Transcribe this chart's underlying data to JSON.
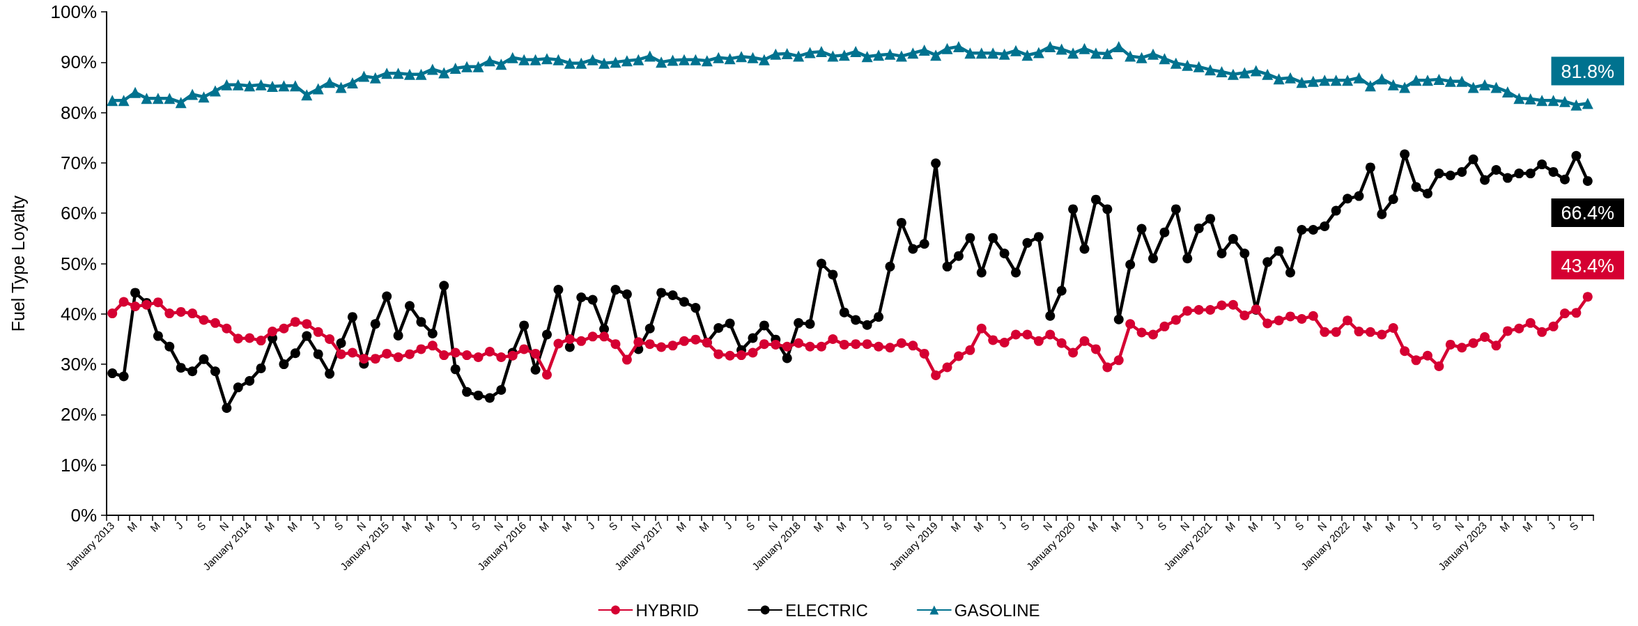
{
  "chart_data": {
    "type": "line",
    "ylabel": "Fuel Type Loyalty",
    "categories": [
      "January 2013",
      null,
      "M",
      null,
      "M",
      null,
      "J",
      null,
      "S",
      null,
      "N",
      null,
      "January 2014",
      null,
      "M",
      null,
      "M",
      null,
      "J",
      null,
      "S",
      null,
      "N",
      null,
      "January 2015",
      null,
      "M",
      null,
      "M",
      null,
      "J",
      null,
      "S",
      null,
      "N",
      null,
      "January 2016",
      null,
      "M",
      null,
      "M",
      null,
      "J",
      null,
      "S",
      null,
      "N",
      null,
      "January 2017",
      null,
      "M",
      null,
      "M",
      null,
      "J",
      null,
      "S",
      null,
      "N",
      null,
      "January 2018",
      null,
      "M",
      null,
      "M",
      null,
      "J",
      null,
      "S",
      null,
      "N",
      null,
      "January 2019",
      null,
      "M",
      null,
      "M",
      null,
      "J",
      null,
      "S",
      null,
      "N",
      null,
      "January 2020",
      null,
      "M",
      null,
      "M",
      null,
      "J",
      null,
      "S",
      null,
      "N",
      null,
      "January 2021",
      null,
      "M",
      null,
      "M",
      null,
      "J",
      null,
      "S",
      null,
      "N",
      null,
      "January 2022",
      null,
      "M",
      null,
      "M",
      null,
      "J",
      null,
      "S",
      null,
      "N",
      null,
      "January 2023",
      null,
      "M",
      null,
      "M",
      null,
      "J",
      null,
      "S",
      null
    ],
    "series": [
      {
        "name": "HYBRID",
        "color": "#d50032",
        "marker": "circle",
        "values": [
          40.1,
          42.4,
          41.5,
          41.8,
          42.3,
          40.1,
          40.4,
          40.1,
          38.8,
          38.2,
          37.1,
          35.1,
          35.2,
          34.7,
          36.5,
          37.1,
          38.4,
          38.0,
          36.4,
          35.0,
          32.0,
          32.3,
          31.1,
          31.1,
          32.1,
          31.4,
          32.0,
          33.0,
          33.7,
          31.8,
          32.3,
          31.8,
          31.4,
          32.5,
          31.4,
          31.7,
          33.0,
          32.1,
          27.9,
          34.1,
          35.0,
          34.6,
          35.5,
          35.5,
          34.0,
          30.9,
          34.4,
          34.0,
          33.4,
          33.7,
          34.6,
          34.9,
          34.3,
          32.0,
          31.7,
          31.8,
          32.3,
          34.0,
          33.9,
          33.5,
          34.2,
          33.5,
          33.5,
          35.0,
          33.9,
          34.0,
          34.0,
          33.5,
          33.3,
          34.2,
          33.7,
          32.1,
          27.8,
          29.4,
          31.6,
          32.8,
          37.1,
          34.8,
          34.3,
          35.9,
          35.9,
          34.6,
          35.9,
          34.2,
          32.3,
          34.6,
          33.0,
          29.4,
          30.8,
          38.0,
          36.3,
          35.9,
          37.5,
          38.8,
          40.6,
          40.8,
          40.8,
          41.7,
          41.8,
          39.7,
          40.9,
          38.1,
          38.7,
          39.5,
          39.0,
          39.6,
          36.4,
          36.4,
          38.7,
          36.5,
          36.4,
          35.9,
          37.2,
          32.6,
          30.8,
          31.7,
          29.6,
          33.9,
          33.3,
          34.2,
          35.4,
          33.7,
          36.6,
          37.1,
          38.2,
          36.4,
          37.5,
          40.1,
          40.2,
          43.4
        ],
        "value_labels": [
          null,
          null,
          null,
          null,
          null,
          null,
          null,
          null,
          null,
          null,
          null,
          null,
          null,
          null,
          null,
          null,
          null,
          null,
          null,
          null,
          null,
          null,
          null,
          null,
          null,
          null,
          null,
          null,
          null,
          null,
          null,
          null,
          null,
          null,
          null,
          null,
          null,
          null,
          null,
          null,
          null,
          null,
          null,
          null,
          null,
          null,
          null,
          null,
          null,
          null,
          null,
          null,
          null,
          null,
          null,
          null,
          null,
          null,
          null,
          null,
          null,
          null,
          null,
          null,
          null,
          null,
          null,
          null,
          null,
          null,
          null,
          null,
          null,
          null,
          null,
          null,
          null,
          null,
          null,
          null,
          null,
          null,
          null,
          null,
          null,
          null,
          null,
          null,
          null,
          null,
          null,
          null,
          null,
          null,
          null,
          null,
          null,
          null,
          null,
          null,
          null,
          null,
          null,
          null,
          null,
          null,
          null,
          null,
          null,
          null,
          null,
          null,
          null,
          null,
          null,
          null,
          null,
          null,
          null,
          null,
          null,
          null,
          null,
          null,
          null,
          null,
          null,
          null,
          null,
          "43.4%"
        ]
      },
      {
        "name": "ELECTRIC",
        "color": "#000000",
        "marker": "circle",
        "values": [
          28.2,
          27.6,
          44.2,
          42.2,
          35.6,
          33.5,
          29.3,
          28.6,
          31.0,
          28.6,
          21.3,
          25.4,
          26.7,
          29.2,
          35.2,
          30.0,
          32.2,
          35.6,
          32.0,
          28.1,
          34.2,
          39.4,
          30.1,
          38.0,
          43.5,
          35.7,
          41.6,
          38.4,
          36.1,
          45.6,
          29.0,
          24.5,
          23.8,
          23.3,
          24.9,
          32.3,
          37.7,
          28.9,
          35.9,
          44.8,
          33.4,
          43.3,
          42.8,
          37.0,
          44.8,
          43.9,
          33.0,
          37.1,
          44.2,
          43.7,
          42.4,
          41.2,
          34.3,
          37.2,
          38.1,
          32.8,
          35.2,
          37.7,
          34.9,
          31.2,
          38.2,
          38.0,
          50.0,
          47.8,
          40.3,
          38.8,
          37.8,
          39.4,
          49.4,
          58.1,
          52.9,
          53.9,
          69.9,
          49.4,
          51.5,
          55.1,
          48.2,
          55.1,
          52.0,
          48.2,
          54.1,
          55.3,
          39.6,
          44.6,
          60.8,
          52.9,
          62.7,
          60.8,
          38.9,
          49.8,
          56.9,
          51.0,
          56.2,
          60.8,
          51.0,
          57.0,
          58.9,
          52.0,
          54.9,
          52.0,
          40.8,
          50.3,
          52.5,
          48.2,
          56.7,
          56.7,
          57.4,
          60.5,
          62.9,
          63.4,
          69.1,
          59.8,
          62.8,
          71.7,
          65.2,
          63.9,
          67.9,
          67.5,
          68.2,
          70.7,
          66.6,
          68.6,
          67.0,
          67.9,
          67.9,
          69.7,
          68.2,
          66.7,
          71.4,
          66.4
        ],
        "value_labels": [
          null,
          null,
          null,
          null,
          null,
          null,
          null,
          null,
          null,
          null,
          null,
          null,
          null,
          null,
          null,
          null,
          null,
          null,
          null,
          null,
          null,
          null,
          null,
          null,
          null,
          null,
          null,
          null,
          null,
          null,
          null,
          null,
          null,
          null,
          null,
          null,
          null,
          null,
          null,
          null,
          null,
          null,
          null,
          null,
          null,
          null,
          null,
          null,
          null,
          null,
          null,
          null,
          null,
          null,
          null,
          null,
          null,
          null,
          null,
          null,
          null,
          null,
          null,
          null,
          null,
          null,
          null,
          null,
          null,
          null,
          null,
          null,
          null,
          null,
          null,
          null,
          null,
          null,
          null,
          null,
          null,
          null,
          null,
          null,
          null,
          null,
          null,
          null,
          null,
          null,
          null,
          null,
          null,
          null,
          null,
          null,
          null,
          null,
          null,
          null,
          null,
          null,
          null,
          null,
          null,
          null,
          null,
          null,
          null,
          null,
          null,
          null,
          null,
          null,
          null,
          null,
          null,
          null,
          null,
          null,
          null,
          null,
          null,
          null,
          null,
          null,
          null,
          null,
          null,
          "66.4%"
        ]
      },
      {
        "name": "GASOLINE",
        "color": "#00728f",
        "marker": "triangle",
        "values": [
          82.4,
          82.4,
          84.0,
          82.8,
          82.8,
          82.8,
          82.0,
          83.6,
          83.1,
          84.3,
          85.5,
          85.5,
          85.3,
          85.5,
          85.2,
          85.3,
          85.3,
          83.5,
          84.7,
          86.0,
          85.0,
          85.9,
          87.2,
          86.9,
          87.8,
          87.8,
          87.6,
          87.6,
          88.6,
          87.9,
          88.8,
          89.1,
          89.1,
          90.3,
          89.6,
          90.9,
          90.5,
          90.5,
          90.7,
          90.5,
          89.8,
          89.8,
          90.5,
          89.8,
          90.0,
          90.3,
          90.5,
          91.2,
          90.0,
          90.4,
          90.5,
          90.5,
          90.3,
          90.9,
          90.7,
          91.1,
          90.9,
          90.5,
          91.6,
          91.7,
          91.2,
          91.9,
          92.1,
          91.2,
          91.4,
          92.1,
          91.1,
          91.4,
          91.6,
          91.2,
          91.8,
          92.4,
          91.4,
          92.7,
          93.1,
          91.8,
          91.8,
          91.8,
          91.6,
          92.3,
          91.4,
          91.9,
          93.1,
          92.6,
          91.8,
          92.7,
          91.8,
          91.7,
          93.1,
          91.2,
          90.9,
          91.6,
          90.7,
          89.8,
          89.4,
          89.1,
          88.5,
          88.1,
          87.6,
          87.9,
          88.3,
          87.6,
          86.7,
          86.9,
          86.0,
          86.2,
          86.4,
          86.4,
          86.4,
          86.9,
          85.3,
          86.7,
          85.5,
          85.0,
          86.4,
          86.4,
          86.6,
          86.2,
          86.2,
          85.0,
          85.5,
          85.0,
          84.1,
          82.8,
          82.7,
          82.4,
          82.4,
          82.2,
          81.5,
          81.8
        ],
        "value_labels": [
          null,
          null,
          null,
          null,
          null,
          null,
          null,
          null,
          null,
          null,
          null,
          null,
          null,
          null,
          null,
          null,
          null,
          null,
          null,
          null,
          null,
          null,
          null,
          null,
          null,
          null,
          null,
          null,
          null,
          null,
          null,
          null,
          null,
          null,
          null,
          null,
          null,
          null,
          null,
          null,
          null,
          null,
          null,
          null,
          null,
          null,
          null,
          null,
          null,
          null,
          null,
          null,
          null,
          null,
          null,
          null,
          null,
          null,
          null,
          null,
          null,
          null,
          null,
          null,
          null,
          null,
          null,
          null,
          null,
          null,
          null,
          null,
          null,
          null,
          null,
          null,
          null,
          null,
          null,
          null,
          null,
          null,
          null,
          null,
          null,
          null,
          null,
          null,
          null,
          null,
          null,
          null,
          null,
          null,
          null,
          null,
          null,
          null,
          null,
          null,
          null,
          null,
          null,
          null,
          null,
          null,
          null,
          null,
          null,
          null,
          null,
          null,
          null,
          null,
          null,
          null,
          null,
          null,
          null,
          null,
          null,
          null,
          null,
          null,
          null,
          null,
          null,
          null,
          null,
          "81.8%"
        ]
      }
    ],
    "ylim": [
      0,
      100
    ],
    "yticks": [
      {
        "value": 0,
        "label": "0%"
      },
      {
        "value": 10,
        "label": "10%"
      },
      {
        "value": 20,
        "label": "20%"
      },
      {
        "value": 30,
        "label": "30%"
      },
      {
        "value": 40,
        "label": "40%"
      },
      {
        "value": 50,
        "label": "50%"
      },
      {
        "value": 60,
        "label": "60%"
      },
      {
        "value": 70,
        "label": "70%"
      },
      {
        "value": 80,
        "label": "80%"
      },
      {
        "value": 90,
        "label": "90%"
      },
      {
        "value": 100,
        "label": "100%"
      }
    ],
    "grid": false,
    "legend": "bottom",
    "line_style": "solid"
  }
}
